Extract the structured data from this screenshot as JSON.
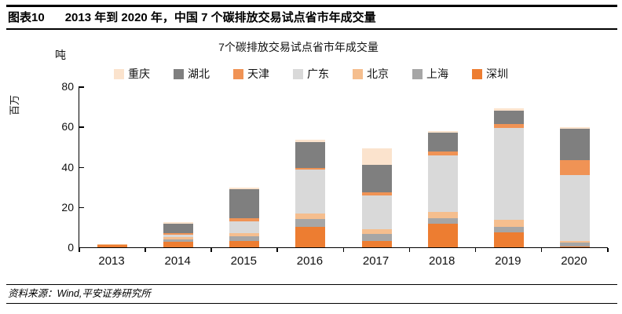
{
  "header": {
    "tag": "图表10",
    "title": "2013 年到 2020 年，中国 7 个碳排放交易试点省市年成交量"
  },
  "footer": {
    "source": "资料来源：Wind,平安证券研究所"
  },
  "chart_data": {
    "type": "bar",
    "stacked": true,
    "title": "7个碳排放交易试点省市年成交量",
    "unit_label": "吨",
    "y_axis_label": "百万",
    "categories": [
      "2013",
      "2014",
      "2015",
      "2016",
      "2017",
      "2018",
      "2019",
      "2020"
    ],
    "series": [
      {
        "name": "深圳",
        "color": "#ED7D31",
        "values": [
          1.0,
          2.6,
          3.2,
          10.3,
          3.3,
          11.7,
          7.5,
          0.5
        ]
      },
      {
        "name": "上海",
        "color": "#A6A6A6",
        "values": [
          0.3,
          1.3,
          2.3,
          3.9,
          3.2,
          2.9,
          2.6,
          2.0
        ]
      },
      {
        "name": "北京",
        "color": "#F5BE8E",
        "values": [
          0.1,
          1.3,
          1.5,
          2.6,
          2.5,
          3.0,
          3.5,
          0.6
        ]
      },
      {
        "name": "广东",
        "color": "#D9D9D9",
        "values": [
          0.1,
          1.0,
          5.8,
          22.0,
          16.9,
          28.0,
          45.9,
          32.8
        ]
      },
      {
        "name": "天津",
        "color": "#F09355",
        "values": [
          0.1,
          1.0,
          1.5,
          0.7,
          1.6,
          2.0,
          1.6,
          7.5
        ]
      },
      {
        "name": "湖北",
        "color": "#7F7F7F",
        "values": [
          0,
          4.4,
          14.4,
          13.0,
          13.4,
          9.2,
          7.0,
          15.7
        ]
      },
      {
        "name": "重庆",
        "color": "#FBE3CD",
        "values": [
          0,
          0.8,
          0.8,
          0.9,
          8.4,
          0.8,
          0.8,
          0.8
        ]
      }
    ],
    "legend_order": [
      "重庆",
      "湖北",
      "天津",
      "广东",
      "北京",
      "上海",
      "深圳"
    ],
    "ylim": [
      0,
      80
    ],
    "yticks": [
      0,
      20,
      40,
      60,
      80
    ],
    "grid": false,
    "legend_position": "top",
    "values_unit": "百万吨"
  }
}
